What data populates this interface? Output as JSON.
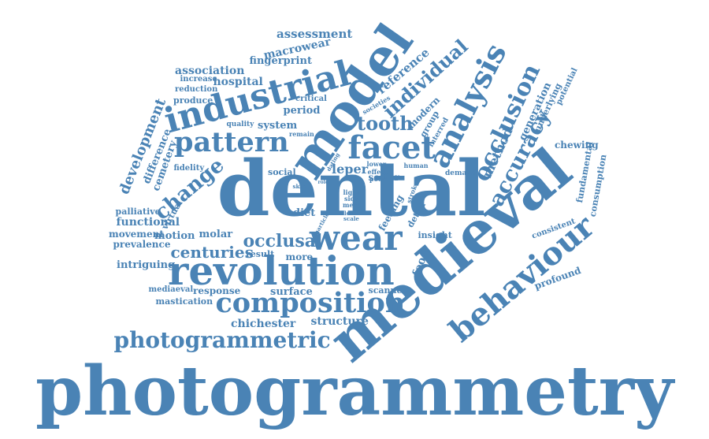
{
  "colors": {
    "ink": "#4a83b5",
    "background": "#ffffff"
  },
  "words": [
    "photogrammetry",
    "dental",
    "medieval",
    "model",
    "revolution",
    "wear",
    "industrial",
    "composition",
    "behaviour",
    "facet",
    "pattern",
    "analysis",
    "photogrammetric",
    "occlusion",
    "accuracy",
    "individual",
    "tooth",
    "development",
    "change",
    "occlusal",
    "centuries",
    "assessment",
    "macrowear",
    "fingerprint",
    "association",
    "hospital",
    "reference",
    "structure",
    "chichester",
    "surface",
    "response",
    "mastication",
    "mediaeval",
    "intriguing",
    "prevalence",
    "movement",
    "functional",
    "palliative",
    "virtual",
    "cemetery",
    "difference",
    "motion",
    "molar",
    "result",
    "more",
    "food",
    "insight",
    "scanner",
    "profound",
    "consistent",
    "consumption",
    "fundamental",
    "chewing",
    "method",
    "generation",
    "underlying",
    "potential",
    "modern",
    "group",
    "societies",
    "interred",
    "quality",
    "system",
    "period",
    "critical",
    "remain",
    "increase",
    "reduction",
    "produce",
    "fidelity",
    "social",
    "diet",
    "leper",
    "softer",
    "effect",
    "lower",
    "poor",
    "human",
    "demand",
    "feeding",
    "detail",
    "light",
    "sick",
    "meat",
    "level",
    "scale",
    "stroke",
    "dating",
    "role",
    "skin",
    "particle"
  ]
}
